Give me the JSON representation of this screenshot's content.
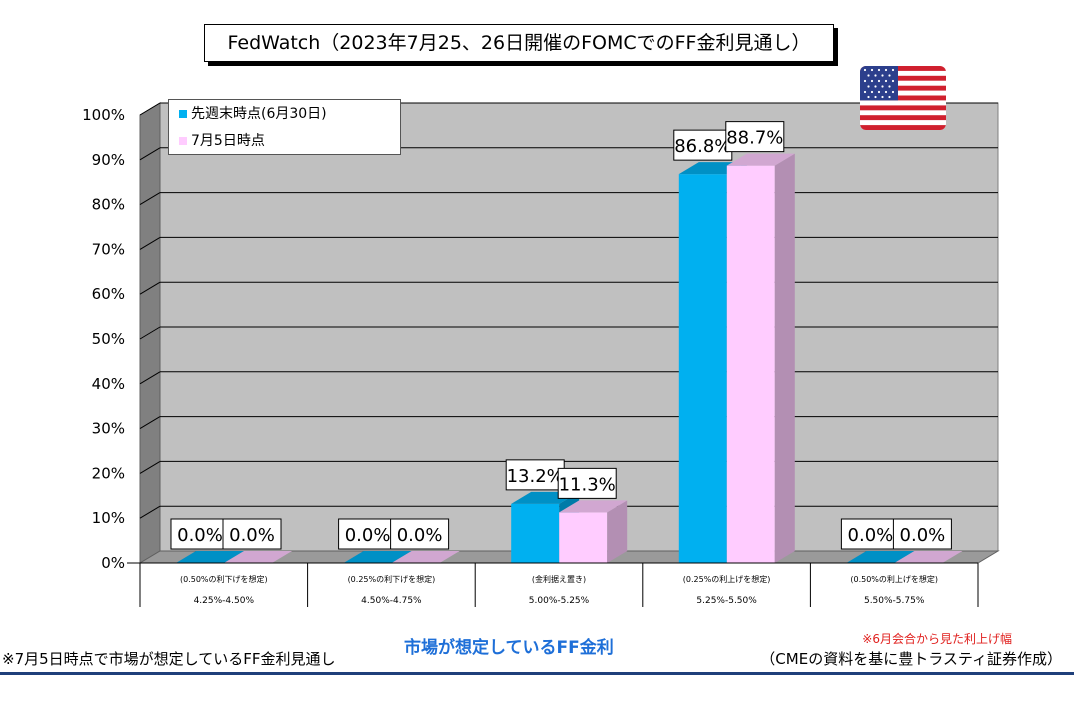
{
  "title": "FedWatch（2023年7月25、26日開催のFOMCでのFF金利見通し）",
  "colors": {
    "series1": "#00b0f0",
    "series2": "#ffccff",
    "plot_bg": "#c0c0c0",
    "rule": "#1f3f7a"
  },
  "chart_data": {
    "type": "bar",
    "categories": [
      "4.25%-4.50%",
      "4.50%-4.75%",
      "5.00%-5.25%",
      "5.25%-5.50%",
      "5.50%-5.75%"
    ],
    "category_notes": [
      "(0.50%の利下げを想定)",
      "(0.25%の利下げを想定)",
      "(金利据え置き)",
      "(0.25%の利上げを想定)",
      "(0.50%の利上げを想定)"
    ],
    "series": [
      {
        "name": "先週末時点(6月30日)",
        "values": [
          0.0,
          0.0,
          13.2,
          86.8,
          0.0
        ],
        "labels": [
          "0.0%",
          "0.0%",
          "13.2%",
          "86.8%",
          "0.0%"
        ]
      },
      {
        "name": "7月5日時点",
        "values": [
          0.0,
          0.0,
          11.3,
          88.7,
          0.0
        ],
        "labels": [
          "0.0%",
          "0.0%",
          "11.3%",
          "88.7%",
          "0.0%"
        ]
      }
    ],
    "ylim": [
      0,
      100
    ],
    "yticks": [
      "0%",
      "10%",
      "20%",
      "30%",
      "40%",
      "50%",
      "60%",
      "70%",
      "80%",
      "90%",
      "100%"
    ],
    "grid": true,
    "legend_position": "top-left",
    "xlabel": "市場が想定しているFF金利"
  },
  "footer": {
    "left_note": "※7月5日時点で市場が想定しているFF金利見通し",
    "center_label": "市場が想定しているFF金利",
    "note_red": "※6月会合から見た利上げ幅",
    "source": "（CMEの資料を基に豊トラスティ証券作成）"
  },
  "flag_icon": "us-flag-icon"
}
